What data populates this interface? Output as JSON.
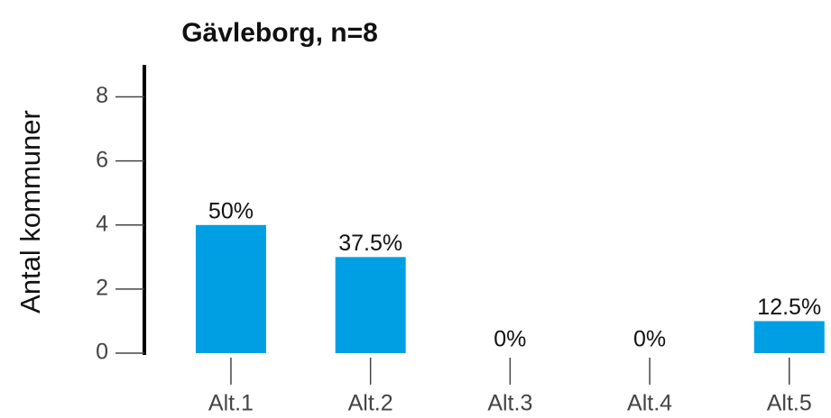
{
  "chart_data": {
    "type": "bar",
    "title": "Gävleborg, n=8",
    "y_label": "Antal kommuner",
    "categories": [
      "Alt.1",
      "Alt.2",
      "Alt.3",
      "Alt.4",
      "Alt.5"
    ],
    "values": [
      4,
      3,
      0,
      0,
      1
    ],
    "value_labels": [
      "50%",
      "37.5%",
      "0%",
      "0%",
      "12.5%"
    ],
    "color": "#009fe3",
    "ylim": [
      0,
      9
    ],
    "yticks": [
      0,
      2,
      4,
      6,
      8
    ]
  }
}
